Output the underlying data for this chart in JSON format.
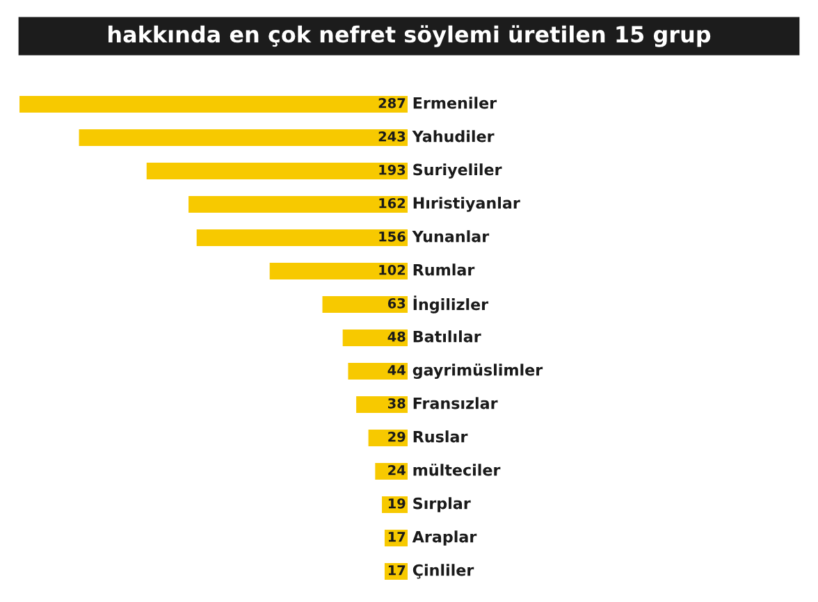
{
  "chart_data": {
    "type": "bar",
    "orientation": "horizontal",
    "title": "hakkında en çok nefret söylemi üretilen 15 grup",
    "categories": [
      "Ermeniler",
      "Yahudiler",
      "Suriyeliler",
      "Hıristiyanlar",
      "Yunanlar",
      "Rumlar",
      "İngilizler",
      "Batılılar",
      "gayrimüslimler",
      "Fransızlar",
      "Ruslar",
      "mülteciler",
      "Sırplar",
      "Araplar",
      "Çinliler"
    ],
    "values": [
      287,
      243,
      193,
      162,
      156,
      102,
      63,
      48,
      44,
      38,
      29,
      24,
      19,
      17,
      17
    ],
    "color": "#f7c900",
    "data_labels": true
  }
}
